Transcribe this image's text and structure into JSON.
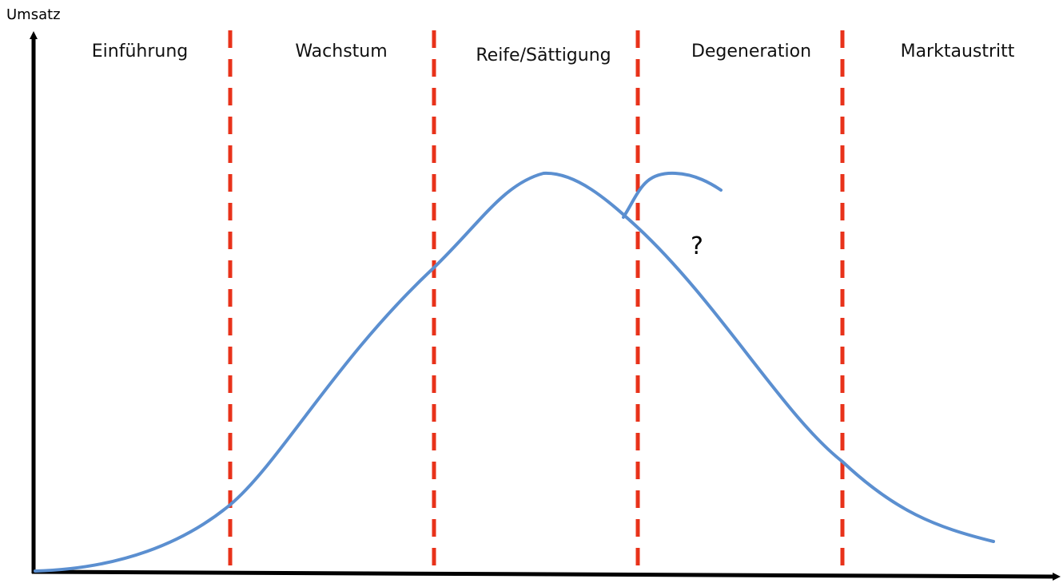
{
  "y_axis_label": "Umsatz",
  "phases": [
    {
      "label": "Einführung"
    },
    {
      "label": "Wachstum"
    },
    {
      "label": "Reife/Sättigung"
    },
    {
      "label": "Degeneration"
    },
    {
      "label": "Marktaustritt"
    }
  ],
  "annotation": "?"
}
